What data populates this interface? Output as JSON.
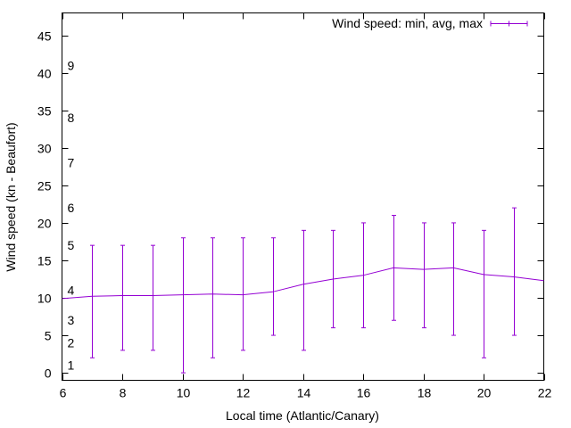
{
  "chart_data": {
    "type": "line",
    "title": "",
    "xlabel": "Local time (Atlantic/Canary)",
    "ylabel": "Wind speed (kn - Beaufort)",
    "xlim": [
      6,
      22
    ],
    "ylim": [
      -1,
      48
    ],
    "x_ticks": [
      6,
      8,
      10,
      12,
      14,
      16,
      18,
      20,
      22
    ],
    "y_ticks": [
      0,
      5,
      10,
      15,
      20,
      25,
      30,
      35,
      40,
      45
    ],
    "beaufort_labels": [
      {
        "label": "1",
        "value": 1
      },
      {
        "label": "2",
        "value": 4
      },
      {
        "label": "3",
        "value": 7
      },
      {
        "label": "4",
        "value": 11
      },
      {
        "label": "5",
        "value": 17
      },
      {
        "label": "6",
        "value": 22
      },
      {
        "label": "7",
        "value": 28
      },
      {
        "label": "8",
        "value": 34
      },
      {
        "label": "9",
        "value": 41
      }
    ],
    "legend": {
      "label": "Wind speed: min, avg, max",
      "position": "top-right"
    },
    "series_color": "#9400d3",
    "series": [
      {
        "name": "Wind speed: min, avg, max",
        "x": [
          6,
          7,
          8,
          9,
          10,
          11,
          12,
          13,
          14,
          15,
          16,
          17,
          18,
          19,
          20,
          21,
          22
        ],
        "avg": [
          9.9,
          10.2,
          10.3,
          10.3,
          10.4,
          10.5,
          10.4,
          10.8,
          11.8,
          12.5,
          13.0,
          14.0,
          13.8,
          14.0,
          13.1,
          12.8,
          12.3
        ],
        "min": [
          null,
          2,
          3,
          3,
          0,
          2,
          3,
          5,
          3,
          6,
          6,
          7,
          6,
          5,
          2,
          5,
          null
        ],
        "max": [
          null,
          17,
          17,
          17,
          18,
          18,
          18,
          18,
          19,
          19,
          20,
          21,
          20,
          20,
          19,
          22,
          null
        ]
      }
    ]
  }
}
